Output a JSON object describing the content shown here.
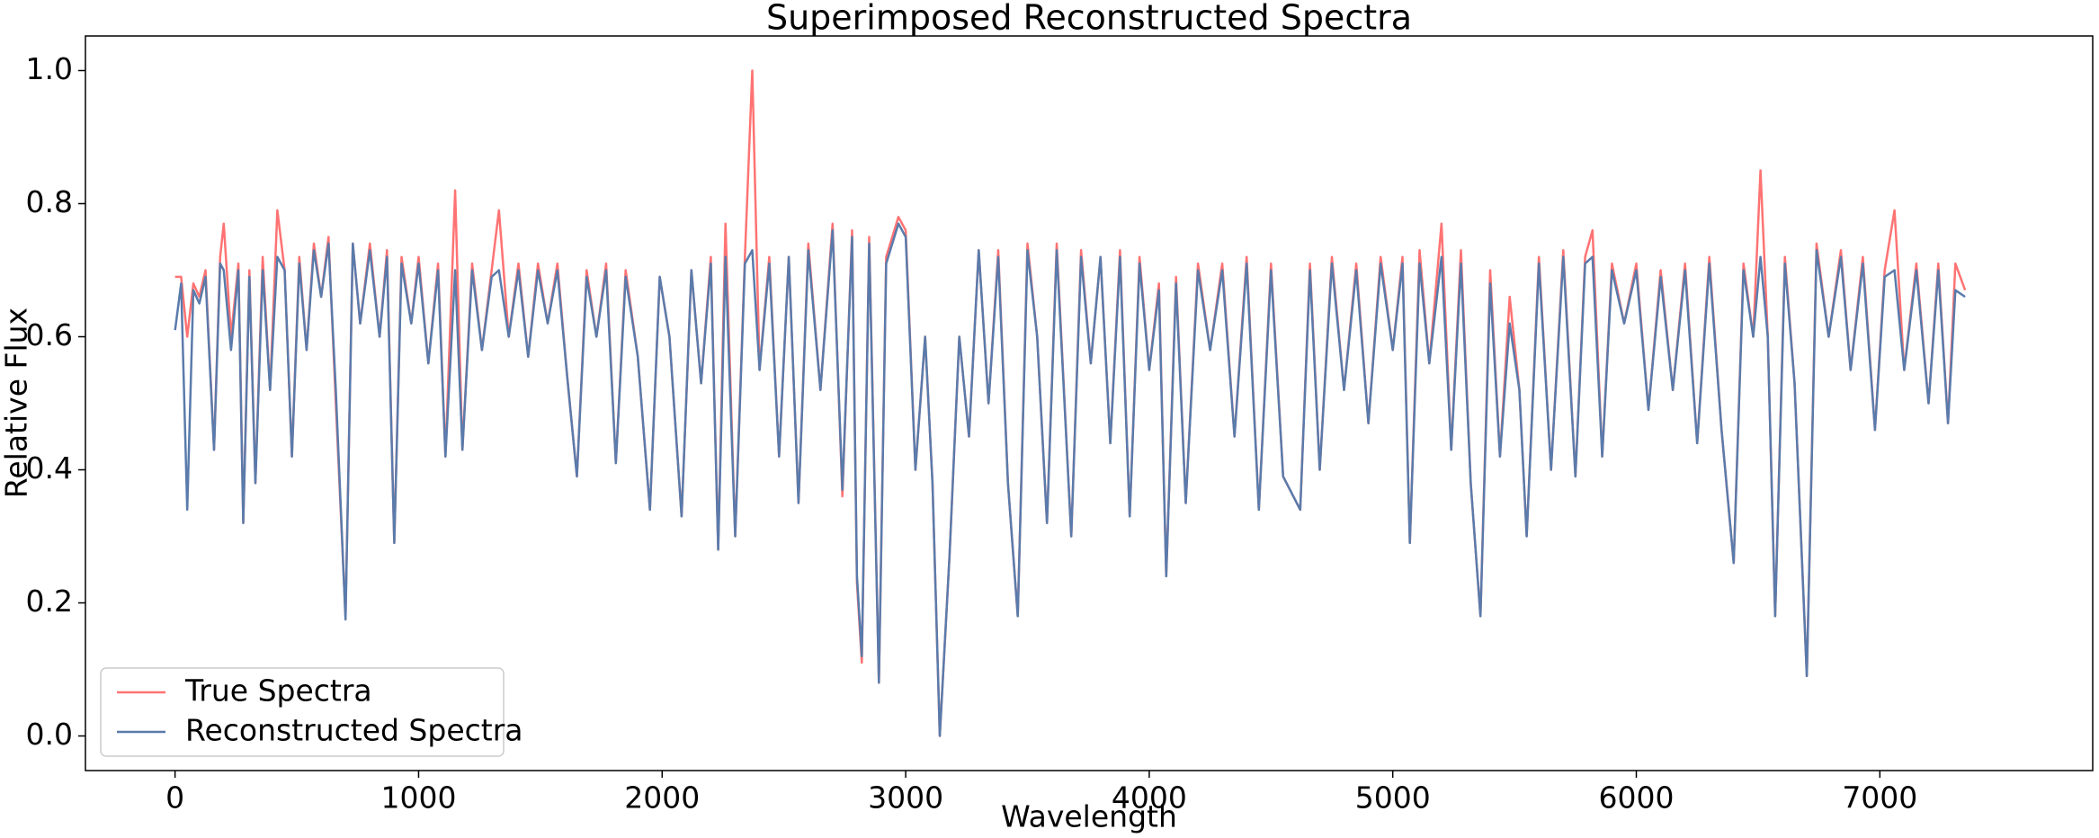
{
  "chart_data": {
    "type": "line",
    "title": "Superimposed Reconstructed Spectra",
    "x_label": "Wavelength",
    "y_label": "Relative Flux",
    "xlim": [
      -368,
      7874
    ],
    "xticks": [
      0,
      1000,
      2000,
      3000,
      4000,
      5000,
      6000,
      7000
    ],
    "ylim": [
      -0.052,
      1.052
    ],
    "yticks": [
      {
        "value": 0,
        "label": "0.0"
      },
      {
        "value": 0.2,
        "label": "0.2"
      },
      {
        "value": 0.4,
        "label": "0.4"
      },
      {
        "value": 0.6,
        "label": "0.6"
      },
      {
        "value": 0.8,
        "label": "0.8"
      },
      {
        "value": 1,
        "label": "1.0"
      }
    ],
    "grid": false,
    "legend": "lower left",
    "x": [
      0,
      25,
      50,
      75,
      100,
      125,
      160,
      185,
      200,
      230,
      260,
      280,
      305,
      330,
      360,
      390,
      420,
      450,
      480,
      510,
      540,
      570,
      600,
      630,
      660,
      700,
      730,
      760,
      800,
      840,
      870,
      900,
      930,
      970,
      1000,
      1040,
      1080,
      1110,
      1150,
      1180,
      1220,
      1260,
      1300,
      1330,
      1370,
      1410,
      1450,
      1490,
      1530,
      1570,
      1610,
      1650,
      1690,
      1730,
      1770,
      1810,
      1850,
      1900,
      1950,
      1990,
      2030,
      2080,
      2120,
      2160,
      2200,
      2230,
      2260,
      2300,
      2340,
      2370,
      2400,
      2440,
      2480,
      2520,
      2560,
      2600,
      2650,
      2700,
      2740,
      2780,
      2800,
      2820,
      2850,
      2890,
      2920,
      2970,
      3000,
      3040,
      3080,
      3110,
      3140,
      3180,
      3220,
      3260,
      3300,
      3340,
      3380,
      3420,
      3460,
      3500,
      3540,
      3580,
      3620,
      3680,
      3720,
      3760,
      3800,
      3840,
      3880,
      3920,
      3960,
      4000,
      4040,
      4070,
      4110,
      4150,
      4200,
      4250,
      4300,
      4350,
      4400,
      4450,
      4500,
      4550,
      4620,
      4660,
      4700,
      4750,
      4800,
      4850,
      4900,
      4950,
      5000,
      5040,
      5070,
      5110,
      5150,
      5200,
      5240,
      5280,
      5320,
      5360,
      5400,
      5440,
      5480,
      5520,
      5550,
      5600,
      5650,
      5700,
      5750,
      5790,
      5820,
      5860,
      5900,
      5950,
      6000,
      6050,
      6100,
      6150,
      6200,
      6250,
      6300,
      6350,
      6400,
      6440,
      6480,
      6510,
      6540,
      6570,
      6610,
      6650,
      6700,
      6740,
      6790,
      6840,
      6880,
      6930,
      6980,
      7020,
      7060,
      7100,
      7150,
      7200,
      7240,
      7280,
      7310,
      7350
    ],
    "series": [
      {
        "name": "True Spectra",
        "color": "#ff7373",
        "values": [
          0.69,
          0.69,
          0.6,
          0.68,
          0.66,
          0.7,
          0.43,
          0.72,
          0.77,
          0.6,
          0.71,
          0.32,
          0.7,
          0.38,
          0.72,
          0.52,
          0.79,
          0.7,
          0.42,
          0.72,
          0.58,
          0.74,
          0.66,
          0.75,
          0.5,
          0.18,
          0.74,
          0.62,
          0.74,
          0.6,
          0.73,
          0.29,
          0.72,
          0.62,
          0.72,
          0.56,
          0.71,
          0.42,
          0.82,
          0.43,
          0.71,
          0.58,
          0.7,
          0.79,
          0.6,
          0.71,
          0.57,
          0.71,
          0.62,
          0.71,
          0.54,
          0.39,
          0.7,
          0.6,
          0.71,
          0.41,
          0.7,
          0.57,
          0.34,
          0.69,
          0.6,
          0.33,
          0.7,
          0.53,
          0.72,
          0.28,
          0.77,
          0.3,
          0.72,
          1.0,
          0.55,
          0.72,
          0.42,
          0.72,
          0.35,
          0.74,
          0.52,
          0.77,
          0.36,
          0.76,
          0.23,
          0.11,
          0.75,
          0.08,
          0.72,
          0.78,
          0.76,
          0.4,
          0.6,
          0.38,
          0.0,
          0.27,
          0.6,
          0.45,
          0.73,
          0.5,
          0.73,
          0.38,
          0.18,
          0.74,
          0.6,
          0.32,
          0.74,
          0.3,
          0.73,
          0.56,
          0.72,
          0.44,
          0.73,
          0.33,
          0.72,
          0.55,
          0.68,
          0.24,
          0.69,
          0.35,
          0.71,
          0.58,
          0.71,
          0.45,
          0.72,
          0.34,
          0.71,
          0.39,
          0.34,
          0.71,
          0.4,
          0.72,
          0.52,
          0.71,
          0.47,
          0.72,
          0.58,
          0.72,
          0.29,
          0.73,
          0.56,
          0.77,
          0.43,
          0.73,
          0.38,
          0.18,
          0.7,
          0.42,
          0.66,
          0.52,
          0.3,
          0.72,
          0.4,
          0.73,
          0.39,
          0.72,
          0.76,
          0.42,
          0.71,
          0.62,
          0.71,
          0.49,
          0.7,
          0.52,
          0.71,
          0.44,
          0.72,
          0.46,
          0.26,
          0.71,
          0.6,
          0.85,
          0.6,
          0.18,
          0.72,
          0.53,
          0.09,
          0.74,
          0.6,
          0.73,
          0.55,
          0.72,
          0.46,
          0.7,
          0.79,
          0.55,
          0.71,
          0.5,
          0.71,
          0.47,
          0.71,
          0.67
        ]
      },
      {
        "name": "Reconstructed Spectra",
        "color": "#5a7bab",
        "values": [
          0.61,
          0.68,
          0.34,
          0.67,
          0.65,
          0.69,
          0.43,
          0.71,
          0.7,
          0.58,
          0.7,
          0.32,
          0.69,
          0.38,
          0.7,
          0.52,
          0.72,
          0.7,
          0.42,
          0.71,
          0.58,
          0.73,
          0.66,
          0.74,
          0.52,
          0.175,
          0.74,
          0.62,
          0.73,
          0.6,
          0.72,
          0.29,
          0.71,
          0.62,
          0.71,
          0.56,
          0.7,
          0.42,
          0.7,
          0.43,
          0.7,
          0.58,
          0.69,
          0.7,
          0.6,
          0.7,
          0.57,
          0.7,
          0.62,
          0.7,
          0.54,
          0.39,
          0.69,
          0.6,
          0.7,
          0.41,
          0.69,
          0.57,
          0.34,
          0.69,
          0.6,
          0.33,
          0.7,
          0.53,
          0.71,
          0.28,
          0.72,
          0.3,
          0.71,
          0.73,
          0.55,
          0.71,
          0.42,
          0.72,
          0.35,
          0.73,
          0.52,
          0.76,
          0.37,
          0.75,
          0.24,
          0.12,
          0.74,
          0.08,
          0.71,
          0.77,
          0.75,
          0.4,
          0.6,
          0.38,
          0.0,
          0.27,
          0.6,
          0.45,
          0.73,
          0.5,
          0.72,
          0.38,
          0.18,
          0.73,
          0.6,
          0.32,
          0.73,
          0.3,
          0.72,
          0.56,
          0.72,
          0.44,
          0.72,
          0.33,
          0.71,
          0.55,
          0.67,
          0.24,
          0.68,
          0.35,
          0.7,
          0.58,
          0.7,
          0.45,
          0.71,
          0.34,
          0.7,
          0.39,
          0.34,
          0.7,
          0.4,
          0.71,
          0.52,
          0.7,
          0.47,
          0.71,
          0.58,
          0.71,
          0.29,
          0.71,
          0.56,
          0.72,
          0.43,
          0.71,
          0.38,
          0.18,
          0.68,
          0.42,
          0.62,
          0.52,
          0.3,
          0.71,
          0.4,
          0.72,
          0.39,
          0.71,
          0.72,
          0.42,
          0.7,
          0.62,
          0.7,
          0.49,
          0.69,
          0.52,
          0.7,
          0.44,
          0.71,
          0.46,
          0.26,
          0.7,
          0.6,
          0.72,
          0.6,
          0.18,
          0.71,
          0.53,
          0.09,
          0.73,
          0.6,
          0.72,
          0.55,
          0.71,
          0.46,
          0.69,
          0.7,
          0.55,
          0.7,
          0.5,
          0.7,
          0.47,
          0.67,
          0.66
        ]
      }
    ]
  }
}
